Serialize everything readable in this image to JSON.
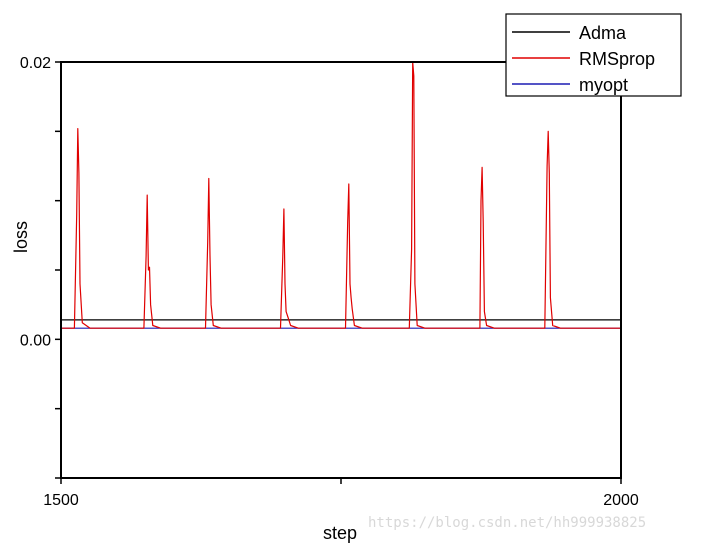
{
  "chart_data": {
    "type": "line",
    "title": "",
    "xlabel": "step",
    "ylabel": "loss",
    "xlim": [
      1500,
      2000
    ],
    "ylim": [
      -0.01,
      0.02
    ],
    "xticks": [
      1500,
      1750,
      2000
    ],
    "xtick_labels": [
      "1500",
      "",
      "2000"
    ],
    "yticks": [
      -0.01,
      -0.005,
      0.0,
      0.005,
      0.01,
      0.015,
      0.02
    ],
    "ytick_labels": [
      "",
      "",
      "0.00",
      "",
      "",
      "",
      "0.02"
    ],
    "grid": false,
    "legend_position": "top-right",
    "series": [
      {
        "name": "Adma",
        "color": "#000000",
        "x": [
          1500,
          2000
        ],
        "y": [
          0.0014,
          0.0014
        ]
      },
      {
        "name": "RMSprop",
        "color": "#e00000",
        "x": [
          1500,
          1512,
          1514,
          1515,
          1516,
          1517,
          1519,
          1526,
          1574,
          1576,
          1577,
          1578,
          1579,
          1580,
          1582,
          1589,
          1629,
          1631,
          1632,
          1633,
          1634,
          1636,
          1643,
          1696,
          1698,
          1699,
          1700,
          1701,
          1703,
          1705,
          1712,
          1754,
          1756,
          1757,
          1758,
          1759,
          1760,
          1762,
          1769,
          1811,
          1813,
          1814,
          1815,
          1816,
          1818,
          1825,
          1874,
          1875,
          1876,
          1877,
          1878,
          1880,
          1887,
          1932,
          1934,
          1935,
          1936,
          1937,
          1939,
          1946,
          2000
        ],
        "y": [
          0.0008,
          0.0008,
          0.009,
          0.0152,
          0.012,
          0.004,
          0.0012,
          0.0008,
          0.0008,
          0.006,
          0.0104,
          0.005,
          0.0052,
          0.0025,
          0.001,
          0.0008,
          0.0008,
          0.007,
          0.0116,
          0.006,
          0.0025,
          0.001,
          0.0008,
          0.0008,
          0.006,
          0.0094,
          0.004,
          0.002,
          0.0015,
          0.001,
          0.0008,
          0.0008,
          0.0085,
          0.0112,
          0.004,
          0.003,
          0.0022,
          0.001,
          0.0008,
          0.0008,
          0.0065,
          0.02,
          0.019,
          0.004,
          0.001,
          0.0008,
          0.0008,
          0.01,
          0.0124,
          0.0085,
          0.002,
          0.001,
          0.0008,
          0.0008,
          0.0125,
          0.015,
          0.012,
          0.003,
          0.001,
          0.0008,
          0.0008
        ]
      },
      {
        "name": "myopt",
        "color": "#1c1cb4",
        "x": [
          1500,
          2000
        ],
        "y": [
          0.0008,
          0.0008
        ]
      }
    ]
  },
  "watermark": "https://blog.csdn.net/hh999938825"
}
